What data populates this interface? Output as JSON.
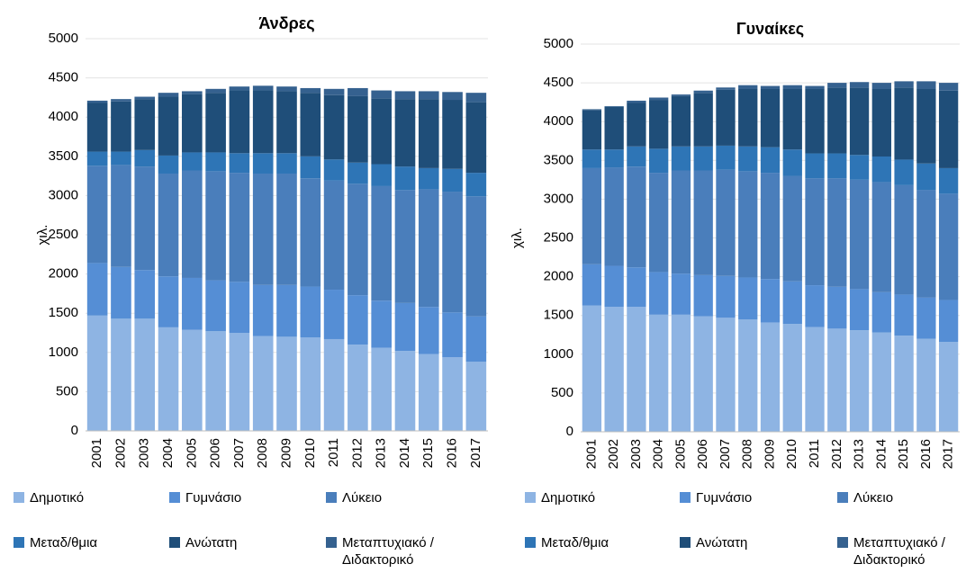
{
  "chart_data": [
    {
      "type": "bar",
      "stacked": true,
      "title": "Άνδρες",
      "y_label": "χιλ.",
      "categories": [
        "2001",
        "2002",
        "2003",
        "2004",
        "2005",
        "2006",
        "2007",
        "2008",
        "2009",
        "2010",
        "2011",
        "2012",
        "2013",
        "2014",
        "2015",
        "2016",
        "2017"
      ],
      "ylim": [
        0,
        5000
      ],
      "yticks": [
        0,
        500,
        1000,
        1500,
        2000,
        2500,
        3000,
        3500,
        4000,
        4500,
        5000
      ],
      "grid": true,
      "series": [
        {
          "name": "Δημοτικό",
          "color": "#8eb4e3",
          "values": [
            1470,
            1430,
            1430,
            1320,
            1290,
            1270,
            1250,
            1210,
            1200,
            1190,
            1170,
            1100,
            1060,
            1020,
            980,
            940,
            880
          ]
        },
        {
          "name": "Γυμνάσιο",
          "color": "#558ed5",
          "values": [
            670,
            660,
            620,
            650,
            660,
            650,
            650,
            650,
            660,
            650,
            630,
            630,
            600,
            610,
            600,
            570,
            580
          ]
        },
        {
          "name": "Λύκειο",
          "color": "#4a7ebb",
          "values": [
            1240,
            1300,
            1320,
            1310,
            1370,
            1390,
            1390,
            1420,
            1420,
            1380,
            1390,
            1420,
            1460,
            1440,
            1500,
            1540,
            1530
          ]
        },
        {
          "name": "Μεταδ/θμια",
          "color": "#2e75b6",
          "values": [
            180,
            170,
            210,
            230,
            230,
            240,
            250,
            260,
            260,
            280,
            270,
            270,
            280,
            300,
            270,
            290,
            300
          ]
        },
        {
          "name": "Ανώτατη",
          "color": "#1f4e79",
          "values": [
            620,
            640,
            650,
            750,
            740,
            760,
            800,
            800,
            790,
            810,
            820,
            850,
            840,
            860,
            880,
            880,
            900
          ]
        },
        {
          "name": "Μεταπτυχιακό / Διδακτορικό",
          "color": "#35618f",
          "values": [
            30,
            30,
            30,
            50,
            40,
            50,
            50,
            60,
            60,
            60,
            80,
            100,
            100,
            100,
            100,
            100,
            120
          ]
        }
      ]
    },
    {
      "type": "bar",
      "stacked": true,
      "title": "Γυναίκες",
      "y_label": "χιλ.",
      "categories": [
        "2001",
        "2002",
        "2003",
        "2004",
        "2005",
        "2006",
        "2007",
        "2008",
        "2009",
        "2010",
        "2011",
        "2012",
        "2013",
        "2014",
        "2015",
        "2016",
        "2017"
      ],
      "ylim": [
        0,
        5000
      ],
      "yticks": [
        0,
        500,
        1000,
        1500,
        2000,
        2500,
        3000,
        3500,
        4000,
        4500,
        5000
      ],
      "grid": true,
      "series": [
        {
          "name": "Δημοτικό",
          "color": "#8eb4e3",
          "values": [
            1630,
            1610,
            1610,
            1510,
            1510,
            1490,
            1470,
            1450,
            1410,
            1390,
            1350,
            1330,
            1310,
            1280,
            1240,
            1200,
            1160
          ]
        },
        {
          "name": "Γυμνάσιο",
          "color": "#558ed5",
          "values": [
            530,
            530,
            510,
            550,
            530,
            530,
            540,
            540,
            560,
            550,
            540,
            540,
            530,
            520,
            530,
            530,
            540
          ]
        },
        {
          "name": "Λύκειο",
          "color": "#4a7ebb",
          "values": [
            1240,
            1270,
            1300,
            1280,
            1330,
            1350,
            1370,
            1370,
            1370,
            1360,
            1380,
            1400,
            1410,
            1420,
            1410,
            1390,
            1370
          ]
        },
        {
          "name": "Μεταδ/θμια",
          "color": "#2e75b6",
          "values": [
            240,
            230,
            260,
            310,
            310,
            310,
            310,
            320,
            330,
            340,
            320,
            320,
            320,
            330,
            330,
            340,
            330
          ]
        },
        {
          "name": "Ανώτατη",
          "color": "#1f4e79",
          "values": [
            510,
            550,
            560,
            630,
            650,
            690,
            720,
            740,
            750,
            780,
            830,
            850,
            870,
            870,
            930,
            960,
            1000
          ]
        },
        {
          "name": "Μεταπτυχιακό / Διδακτορικό",
          "color": "#35618f",
          "values": [
            10,
            10,
            30,
            30,
            20,
            30,
            30,
            50,
            40,
            50,
            40,
            60,
            70,
            80,
            80,
            100,
            100
          ]
        }
      ]
    }
  ]
}
